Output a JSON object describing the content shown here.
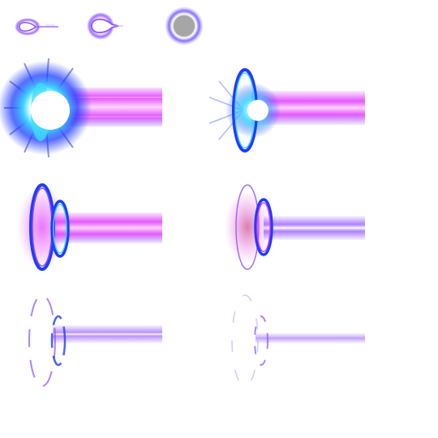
{
  "sheet": {
    "background": "#ffffff",
    "frame_count": 9,
    "frames": [
      {
        "kind": "charge-small",
        "icon": "plasma-droplet-icon"
      },
      {
        "kind": "charge-medium",
        "icon": "plasma-droplet-icon"
      },
      {
        "kind": "charge-orb",
        "icon": "plasma-orb-icon"
      },
      {
        "kind": "beam-muzzle-flash",
        "icon": "laser-beam-icon"
      },
      {
        "kind": "beam-single-ring",
        "icon": "laser-beam-icon"
      },
      {
        "kind": "beam-double-ring",
        "icon": "laser-beam-icon"
      },
      {
        "kind": "beam-thin-ring",
        "icon": "laser-beam-icon"
      },
      {
        "kind": "beam-fading",
        "icon": "laser-beam-icon"
      },
      {
        "kind": "beam-dissipating",
        "icon": "laser-beam-icon"
      }
    ]
  },
  "colors": {
    "core_white": "#ffffff",
    "cyan_glow": "#3fd9ff",
    "blue_glow": "#1e3cff",
    "beam_magenta": "#e03cff",
    "beam_purple": "#8a4dff",
    "soft_violet": "#b9a3ff",
    "orb_gray": "#9a9a9a"
  }
}
